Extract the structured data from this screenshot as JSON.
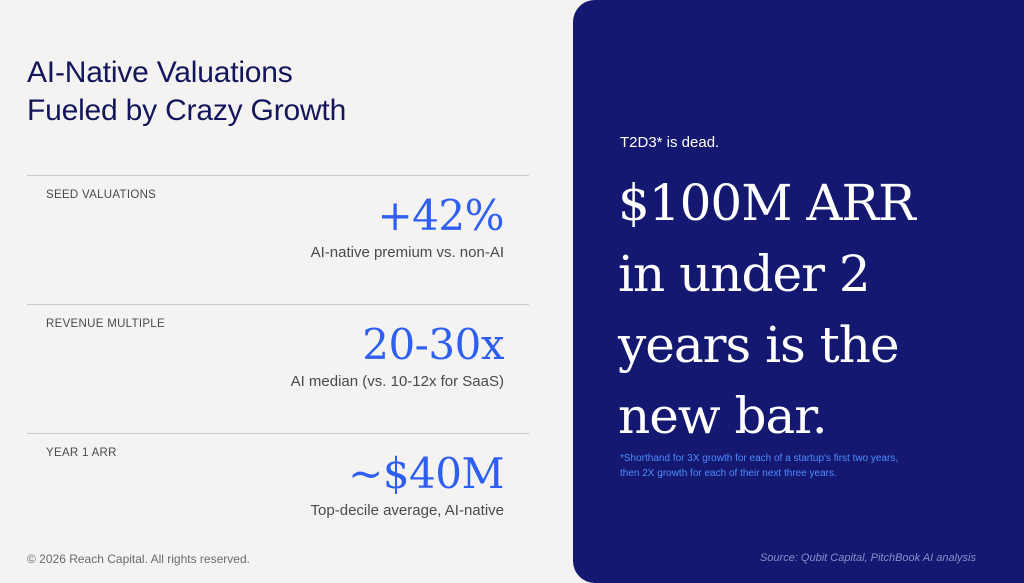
{
  "title_lines": [
    "AI-Native Valuations",
    "Fueled by Crazy Growth"
  ],
  "metrics": [
    {
      "label": "SEED VALUATIONS",
      "value": "+42%",
      "description": "AI-native premium vs. non-AI"
    },
    {
      "label": "REVENUE MULTIPLE",
      "value": "20-30x",
      "description": "AI median (vs. 10-12x for SaaS)"
    },
    {
      "label": "YEAR 1 ARR",
      "value": "~$40M",
      "description": "Top-decile average, AI-native"
    }
  ],
  "copyright": "© 2026 Reach Capital. All rights reserved.",
  "panel": {
    "kicker": "T2D3* is dead.",
    "headline_lines": [
      "$100M ARR",
      "in under 2",
      "years is the",
      "new bar."
    ],
    "footnote_lines": [
      "*Shorthand for 3X growth for each of a startup's first two years,",
      "then 2X growth for each of their next three years."
    ],
    "source": "Source: Qubit Capital, PitchBook AI analysis"
  },
  "colors": {
    "background": "#f4f3f1",
    "title": "#13165a",
    "accent_blue": "#2f5ff0",
    "panel_navy": "#141870",
    "footnote_blue": "#4d8cff"
  }
}
